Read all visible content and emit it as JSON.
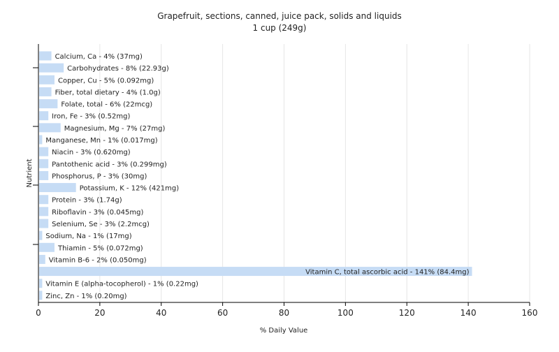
{
  "chart_data": {
    "type": "bar",
    "orientation": "horizontal",
    "title": "Grapefruit, sections, canned, juice pack, solids and liquids",
    "subtitle": "1 cup (249g)",
    "xlabel": "% Daily Value",
    "ylabel": "Nutrient",
    "xlim": [
      0,
      160
    ],
    "xticks": [
      0,
      20,
      40,
      60,
      80,
      100,
      120,
      140,
      160
    ],
    "grid": true,
    "colors": {
      "bar": "#c6dcf5",
      "grid": "#e6e6e6",
      "axis": "#000000",
      "plot_bg": "#ffffff"
    },
    "categories": [
      "Calcium, Ca",
      "Carbohydrates",
      "Copper, Cu",
      "Fiber, total dietary",
      "Folate, total",
      "Iron, Fe",
      "Magnesium, Mg",
      "Manganese, Mn",
      "Niacin",
      "Pantothenic acid",
      "Phosphorus, P",
      "Potassium, K",
      "Protein",
      "Riboflavin",
      "Selenium, Se",
      "Sodium, Na",
      "Thiamin",
      "Vitamin B-6",
      "Vitamin C, total ascorbic acid",
      "Vitamin E (alpha-tocopherol)",
      "Zinc, Zn"
    ],
    "values": [
      4,
      8,
      5,
      4,
      6,
      3,
      7,
      1,
      3,
      3,
      3,
      12,
      3,
      3,
      3,
      1,
      5,
      2,
      141,
      1,
      1
    ],
    "data_labels": [
      "Calcium, Ca - 4% (37mg)",
      "Carbohydrates - 8% (22.93g)",
      "Copper, Cu - 5% (0.092mg)",
      "Fiber, total dietary - 4% (1.0g)",
      "Folate, total - 6% (22mcg)",
      "Iron, Fe - 3% (0.52mg)",
      "Magnesium, Mg - 7% (27mg)",
      "Manganese, Mn - 1% (0.017mg)",
      "Niacin - 3% (0.620mg)",
      "Pantothenic acid - 3% (0.299mg)",
      "Phosphorus, P - 3% (30mg)",
      "Potassium, K - 12% (421mg)",
      "Protein - 3% (1.74g)",
      "Riboflavin - 3% (0.045mg)",
      "Selenium, Se - 3% (2.2mcg)",
      "Sodium, Na - 1% (17mg)",
      "Thiamin - 5% (0.072mg)",
      "Vitamin B-6 - 2% (0.050mg)",
      "Vitamin C, total ascorbic acid - 141% (84.4mg)",
      "Vitamin E (alpha-tocopherol) - 1% (0.22mg)",
      "Zinc, Zn - 1% (0.20mg)"
    ]
  }
}
